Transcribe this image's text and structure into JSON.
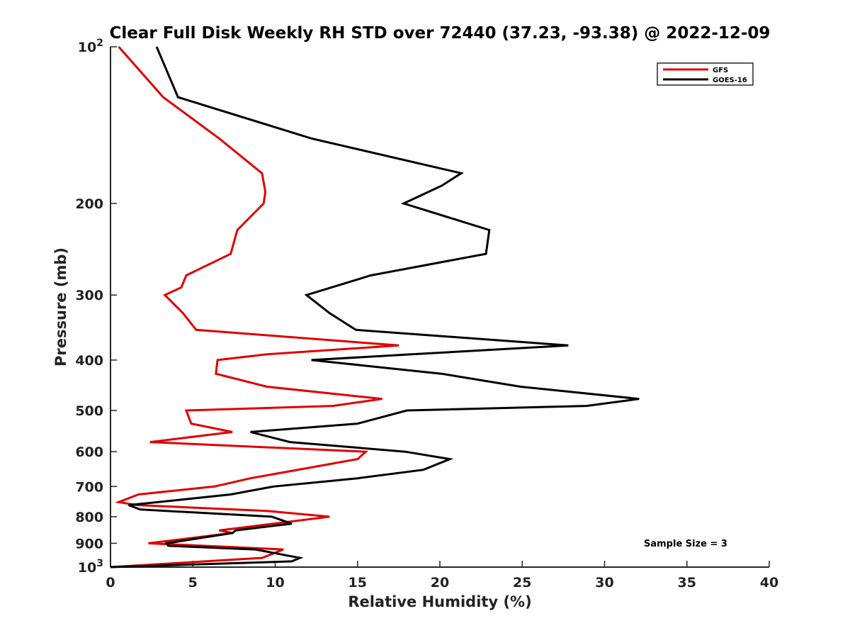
{
  "chart_data": {
    "type": "line",
    "title": "Clear Full Disk Weekly RH STD over 72440 (37.23, -93.38) @ 2022-12-09",
    "xlabel": "Relative Humidity (%)",
    "ylabel": "Pressure (mb)",
    "xlim": [
      0,
      40
    ],
    "ylim": [
      100,
      1000
    ],
    "yscale": "log",
    "y_reversed": true,
    "x_ticks": [
      "0",
      "5",
      "10",
      "15",
      "20",
      "25",
      "30",
      "35",
      "40"
    ],
    "y_ticks": [
      {
        "value": 100,
        "base": "10",
        "exp": "2"
      },
      {
        "value": 200,
        "label": "200"
      },
      {
        "value": 300,
        "label": "300"
      },
      {
        "value": 400,
        "label": "400"
      },
      {
        "value": 500,
        "label": "500"
      },
      {
        "value": 600,
        "label": "600"
      },
      {
        "value": 700,
        "label": "700"
      },
      {
        "value": 800,
        "label": "800"
      },
      {
        "value": 900,
        "label": "900"
      },
      {
        "value": 1000,
        "base": "10",
        "exp": "3"
      }
    ],
    "grid": false,
    "legend_position": "top-right",
    "annotation": "Sample Size = 3",
    "series": [
      {
        "name": "GFS",
        "color": "#e00000",
        "points": [
          [
            0.5,
            100
          ],
          [
            3.2,
            125
          ],
          [
            6.6,
            150
          ],
          [
            9.2,
            175
          ],
          [
            9.4,
            190
          ],
          [
            9.3,
            200
          ],
          [
            7.7,
            225
          ],
          [
            7.3,
            250
          ],
          [
            4.6,
            275
          ],
          [
            4.3,
            290
          ],
          [
            3.3,
            300
          ],
          [
            4.4,
            325
          ],
          [
            5.2,
            350
          ],
          [
            17.5,
            375
          ],
          [
            9.5,
            390
          ],
          [
            6.5,
            400
          ],
          [
            6.4,
            425
          ],
          [
            9.5,
            450
          ],
          [
            16.5,
            475
          ],
          [
            13.5,
            490
          ],
          [
            4.6,
            500
          ],
          [
            4.9,
            530
          ],
          [
            7.4,
            550
          ],
          [
            2.4,
            575
          ],
          [
            15.5,
            600
          ],
          [
            15.0,
            620
          ],
          [
            8.5,
            675
          ],
          [
            6.3,
            700
          ],
          [
            1.7,
            725
          ],
          [
            0.5,
            750
          ],
          [
            1.6,
            760
          ],
          [
            9.5,
            780
          ],
          [
            13.3,
            800
          ],
          [
            6.6,
            850
          ],
          [
            7.4,
            860
          ],
          [
            2.3,
            900
          ],
          [
            10.5,
            925
          ],
          [
            9.2,
            960
          ],
          [
            0.0,
            1000
          ]
        ]
      },
      {
        "name": "GOES-16",
        "color": "#000000",
        "points": [
          [
            2.8,
            100
          ],
          [
            4.1,
            125
          ],
          [
            12.2,
            150
          ],
          [
            21.3,
            175
          ],
          [
            20.1,
            185
          ],
          [
            17.8,
            200
          ],
          [
            23.0,
            225
          ],
          [
            22.8,
            250
          ],
          [
            15.8,
            275
          ],
          [
            11.9,
            300
          ],
          [
            13.3,
            325
          ],
          [
            14.9,
            350
          ],
          [
            27.8,
            375
          ],
          [
            18.3,
            390
          ],
          [
            12.2,
            400
          ],
          [
            20.1,
            425
          ],
          [
            24.9,
            450
          ],
          [
            32.1,
            475
          ],
          [
            28.9,
            490
          ],
          [
            18.0,
            500
          ],
          [
            15.0,
            530
          ],
          [
            8.5,
            550
          ],
          [
            10.9,
            575
          ],
          [
            17.9,
            600
          ],
          [
            20.6,
            620
          ],
          [
            19.0,
            650
          ],
          [
            15.0,
            675
          ],
          [
            9.9,
            700
          ],
          [
            7.3,
            725
          ],
          [
            2.9,
            750
          ],
          [
            1.1,
            760
          ],
          [
            1.8,
            775
          ],
          [
            9.8,
            800
          ],
          [
            11.0,
            825
          ],
          [
            7.6,
            850
          ],
          [
            7.4,
            860
          ],
          [
            3.4,
            900
          ],
          [
            3.5,
            910
          ],
          [
            8.8,
            925
          ],
          [
            11.5,
            960
          ],
          [
            11.0,
            975
          ],
          [
            0.0,
            1000
          ]
        ]
      }
    ]
  }
}
